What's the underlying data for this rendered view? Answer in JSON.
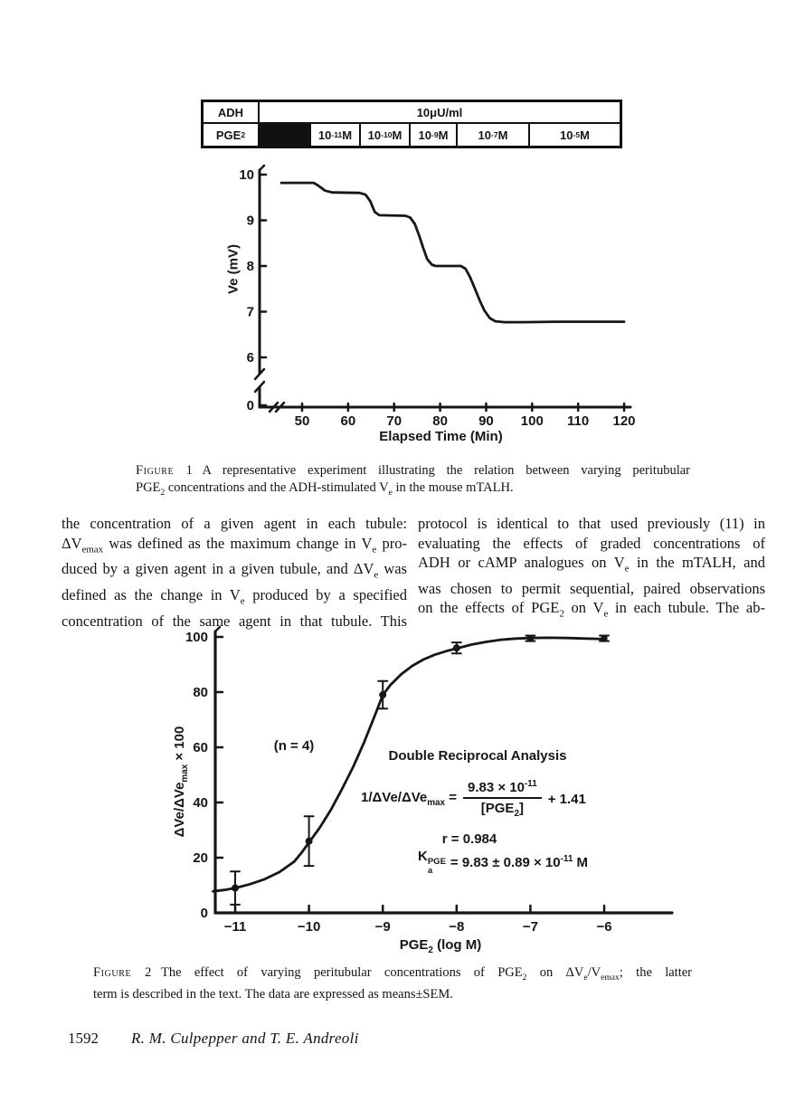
{
  "header_table": {
    "row1_label": "ADH",
    "row1_value": "10μU/ml",
    "row2_label": "PGE_{2}",
    "row2_cells": [
      "",
      "10^{-11} M",
      "10^{-10} M",
      "10^{-9} M",
      "10^{-7} M",
      "10^{-5} M"
    ]
  },
  "chart_data": [
    {
      "id": "figure-1",
      "type": "line",
      "title": "",
      "xlabel": "Elapsed Time (Min)",
      "ylabel": "Ve (mV)",
      "xticks": [
        50,
        60,
        70,
        80,
        90,
        100,
        110,
        120
      ],
      "yticks": [
        0,
        6,
        7,
        8,
        9,
        10
      ],
      "xlim": [
        44,
        120
      ],
      "ylim": [
        0,
        10
      ],
      "axis_break_y": true,
      "axis_break_x": true,
      "grid": false,
      "series": [
        {
          "name": "ADH-stimulated Ve trace",
          "points": [
            [
              45.5,
              9.82
            ],
            [
              52.5,
              9.82
            ],
            [
              53.5,
              9.76
            ],
            [
              55,
              9.65
            ],
            [
              56.5,
              9.61
            ],
            [
              62.5,
              9.6
            ],
            [
              63.8,
              9.56
            ],
            [
              64.8,
              9.42
            ],
            [
              65.8,
              9.18
            ],
            [
              66.8,
              9.11
            ],
            [
              72.5,
              9.1
            ],
            [
              73.5,
              9.06
            ],
            [
              74.5,
              8.92
            ],
            [
              75.5,
              8.65
            ],
            [
              76.3,
              8.4
            ],
            [
              77.2,
              8.15
            ],
            [
              78.2,
              8.03
            ],
            [
              79,
              8.0
            ],
            [
              84.5,
              8.0
            ],
            [
              85.5,
              7.94
            ],
            [
              86.5,
              7.76
            ],
            [
              87.5,
              7.52
            ],
            [
              88.6,
              7.25
            ],
            [
              89.6,
              7.03
            ],
            [
              90.8,
              6.86
            ],
            [
              92,
              6.79
            ],
            [
              94,
              6.77
            ],
            [
              98,
              6.77
            ],
            [
              105,
              6.78
            ],
            [
              112,
              6.78
            ],
            [
              120,
              6.78
            ]
          ]
        }
      ]
    },
    {
      "id": "figure-2",
      "type": "scatter",
      "title": "",
      "xlabel": "PGE_{2} (log M)",
      "ylabel": "ΔVe/ΔVe_{max} × 100",
      "xticks": [
        -11,
        -10,
        -9,
        -8,
        -7,
        -6
      ],
      "yticks": [
        0,
        20,
        40,
        60,
        80,
        100
      ],
      "xlim": [
        -11.4,
        -5.6
      ],
      "ylim": [
        0,
        100
      ],
      "grid": false,
      "points": [
        {
          "x": -11,
          "y": 9,
          "sem": 6,
          "marker": "circle"
        },
        {
          "x": -10,
          "y": 26,
          "sem": 9,
          "marker": "circle"
        },
        {
          "x": -9,
          "y": 79,
          "sem": 5,
          "marker": "circle"
        },
        {
          "x": -8,
          "y": 96,
          "sem": 2,
          "marker": "circle"
        },
        {
          "x": -7,
          "y": 99.5,
          "sem": 1,
          "marker": "square"
        },
        {
          "x": -6,
          "y": 99.5,
          "sem": 1,
          "marker": "square"
        }
      ],
      "curve": [
        [
          -11.3,
          7.8
        ],
        [
          -11.15,
          8.3
        ],
        [
          -11,
          9.0
        ],
        [
          -10.8,
          10.4
        ],
        [
          -10.6,
          12.2
        ],
        [
          -10.4,
          14.8
        ],
        [
          -10.2,
          18.6
        ],
        [
          -10.1,
          21.8
        ],
        [
          -10,
          25.5
        ],
        [
          -9.85,
          31
        ],
        [
          -9.7,
          37.5
        ],
        [
          -9.55,
          45
        ],
        [
          -9.4,
          53
        ],
        [
          -9.25,
          62
        ],
        [
          -9.1,
          72
        ],
        [
          -9,
          79
        ],
        [
          -8.9,
          82.5
        ],
        [
          -8.75,
          86.5
        ],
        [
          -8.6,
          89.5
        ],
        [
          -8.45,
          91.8
        ],
        [
          -8.3,
          93.5
        ],
        [
          -8.15,
          94.8
        ],
        [
          -8,
          95.8
        ],
        [
          -7.8,
          97.2
        ],
        [
          -7.6,
          98.2
        ],
        [
          -7.4,
          99
        ],
        [
          -7.2,
          99.4
        ],
        [
          -7,
          99.6
        ],
        [
          -6.75,
          99.7
        ],
        [
          -6.5,
          99.6
        ],
        [
          -6.25,
          99.4
        ],
        [
          -6,
          99.2
        ]
      ],
      "annotations": {
        "n_label": "(n = 4)",
        "analysis_title": "Double Reciprocal Analysis",
        "eq_lhs": "1/ΔVe/ΔVe_{max} =",
        "eq_numerator": "9.83 × 10^{-11}",
        "eq_denominator": "[PGE_{2}]",
        "eq_tail": "+ 1.41",
        "r_label": "r = 0.984",
        "ka_base": "K",
        "ka_sup": "PGE",
        "ka_sub": "a",
        "ka_value": "= 9.83 ± 0.89 × 10^{-11} M"
      }
    }
  ],
  "captions": {
    "fig1_label": "Figure 1",
    "fig1_line1": "A representative experiment illustrating the relation between varying peritubular",
    "fig1_line2": "PGE_{2} concentrations and the ADH-stimulated V_{e} in the mouse mTALH.",
    "fig2_label": "Figure 2",
    "fig2_line1": "The effect of varying peritubular concentrations of PGE_{2} on ΔV_{e}/V_{emax}; the latter",
    "fig2_line2": "term is described in the text. The data are expressed as means±SEM."
  },
  "body": {
    "left_lines": [
      "the concentration of a given agent in each tubule:",
      "ΔV_{emax} was defined as the maximum change in V_{e} pro-",
      "duced by a given agent in a given tubule, and ΔV_{e} was",
      "defined as the change in V_{e} produced by a specified",
      "concentration of the same agent in that tubule. This"
    ],
    "right_lines": [
      "protocol is identical to that used previously (11) in",
      "evaluating the effects of graded concentrations of",
      "ADH or cAMP analogues on V_{e} in the mTALH, and",
      "was chosen to permit sequential, paired observations",
      "on the effects of PGE_{2} on V_{e} in each tubule. The ab-"
    ]
  },
  "footer": {
    "page_number": "1592",
    "authors": "R. M. Culpepper and T. E. Andreoli"
  }
}
